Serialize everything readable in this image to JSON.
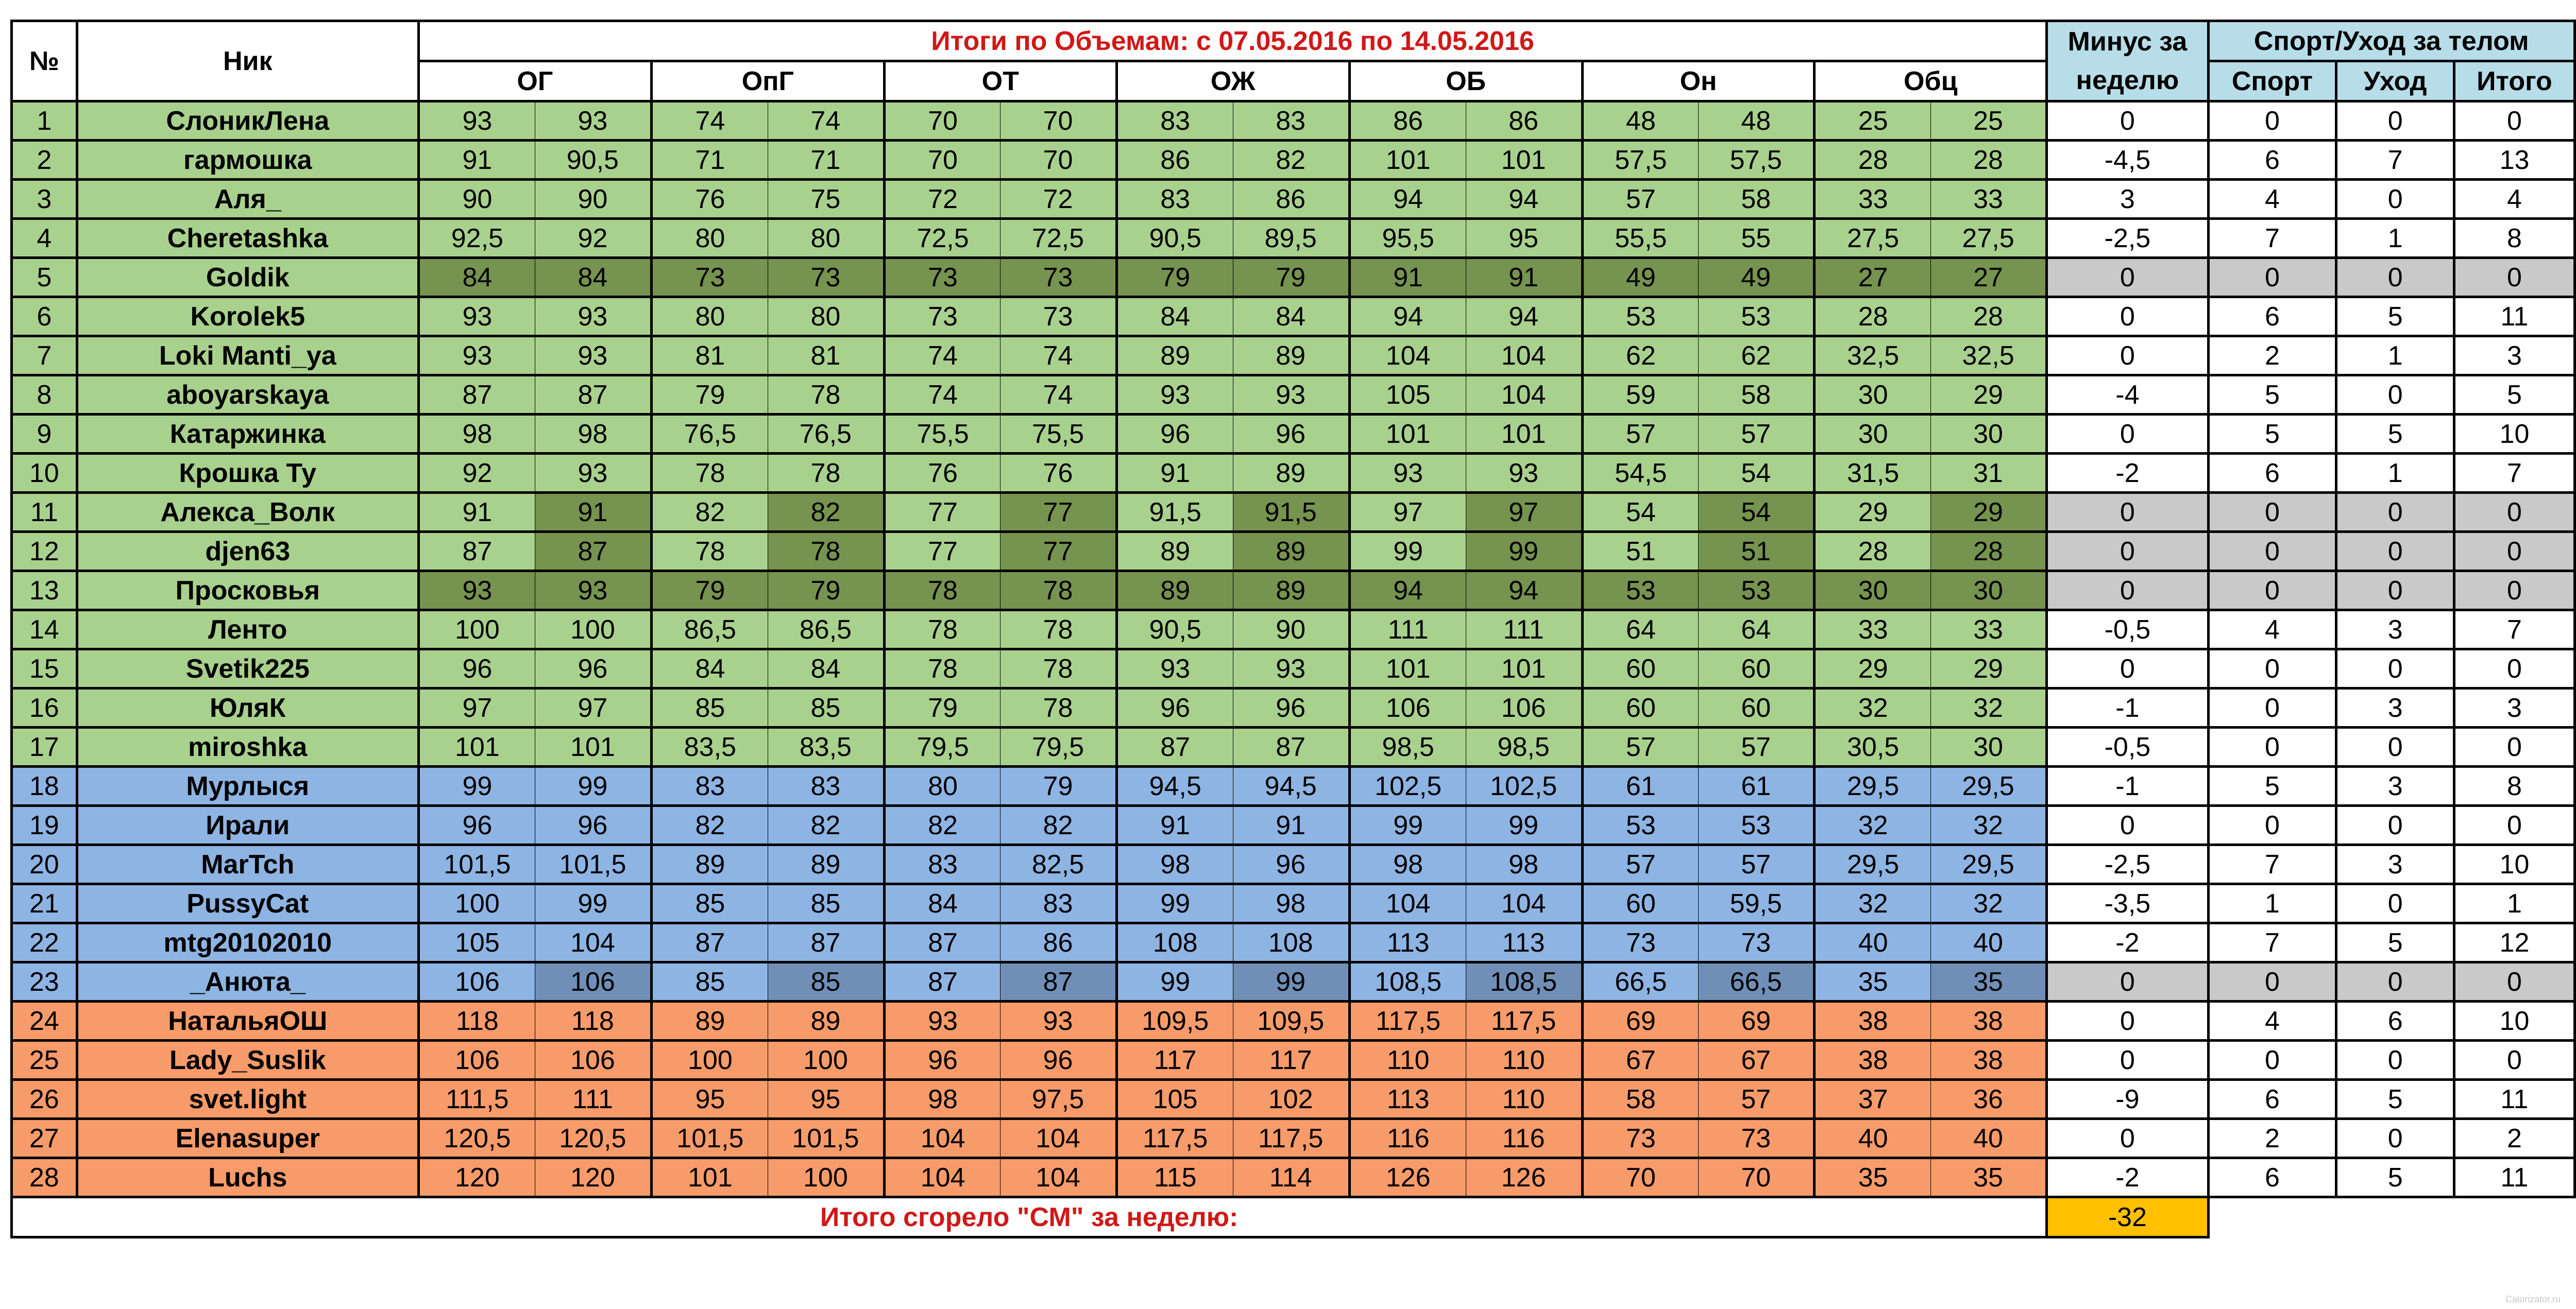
{
  "header": {
    "num": "№",
    "nick": "Ник",
    "title": "Итоги по Объемам: с  07.05.2016 по 14.05.2016",
    "groups": [
      "ОГ",
      "ОпГ",
      "ОТ",
      "ОЖ",
      "ОБ",
      "Он",
      "Обц"
    ],
    "minus_top": "Минус за",
    "minus_bottom": "неделю",
    "sport_group": "Спорт/Уход за телом",
    "sport": "Спорт",
    "care": "Уход",
    "total": "Итого"
  },
  "rows": [
    {
      "n": "1",
      "nick": "СлоникЛена",
      "v": [
        "93",
        "93",
        "74",
        "74",
        "70",
        "70",
        "83",
        "83",
        "86",
        "86",
        "48",
        "48",
        "25",
        "25"
      ],
      "minus": "0",
      "sport": "0",
      "care": "0",
      "total": "0",
      "color": "green"
    },
    {
      "n": "2",
      "nick": "гармошка",
      "v": [
        "91",
        "90,5",
        "71",
        "71",
        "70",
        "70",
        "86",
        "82",
        "101",
        "101",
        "57,5",
        "57,5",
        "28",
        "28"
      ],
      "minus": "-4,5",
      "sport": "6",
      "care": "7",
      "total": "13",
      "color": "green"
    },
    {
      "n": "3",
      "nick": "Аля_",
      "v": [
        "90",
        "90",
        "76",
        "75",
        "72",
        "72",
        "83",
        "86",
        "94",
        "94",
        "57",
        "58",
        "33",
        "33"
      ],
      "minus": "3",
      "sport": "4",
      "care": "0",
      "total": "4",
      "color": "green"
    },
    {
      "n": "4",
      "nick": "Cheretashka",
      "v": [
        "92,5",
        "92",
        "80",
        "80",
        "72,5",
        "72,5",
        "90,5",
        "89,5",
        "95,5",
        "95",
        "55,5",
        "55",
        "27,5",
        "27,5"
      ],
      "minus": "-2,5",
      "sport": "7",
      "care": "1",
      "total": "8",
      "color": "green"
    },
    {
      "n": "5",
      "nick": "Goldik",
      "v": [
        "84",
        "84",
        "73",
        "73",
        "73",
        "73",
        "79",
        "79",
        "91",
        "91",
        "49",
        "49",
        "27",
        "27"
      ],
      "minus": "0",
      "sport": "0",
      "care": "0",
      "total": "0",
      "color": "green",
      "shade": "full"
    },
    {
      "n": "6",
      "nick": "Korolek5",
      "v": [
        "93",
        "93",
        "80",
        "80",
        "73",
        "73",
        "84",
        "84",
        "94",
        "94",
        "53",
        "53",
        "28",
        "28"
      ],
      "minus": "0",
      "sport": "6",
      "care": "5",
      "total": "11",
      "color": "green"
    },
    {
      "n": "7",
      "nick": "Loki Manti_ya",
      "v": [
        "93",
        "93",
        "81",
        "81",
        "74",
        "74",
        "89",
        "89",
        "104",
        "104",
        "62",
        "62",
        "32,5",
        "32,5"
      ],
      "minus": "0",
      "sport": "2",
      "care": "1",
      "total": "3",
      "color": "green"
    },
    {
      "n": "8",
      "nick": "aboyarskaya",
      "v": [
        "87",
        "87",
        "79",
        "78",
        "74",
        "74",
        "93",
        "93",
        "105",
        "104",
        "59",
        "58",
        "30",
        "29"
      ],
      "minus": "-4",
      "sport": "5",
      "care": "0",
      "total": "5",
      "color": "green"
    },
    {
      "n": "9",
      "nick": "Катаржинка",
      "v": [
        "98",
        "98",
        "76,5",
        "76,5",
        "75,5",
        "75,5",
        "96",
        "96",
        "101",
        "101",
        "57",
        "57",
        "30",
        "30"
      ],
      "minus": "0",
      "sport": "5",
      "care": "5",
      "total": "10",
      "color": "green"
    },
    {
      "n": "10",
      "nick": "Крошка Ту",
      "v": [
        "92",
        "93",
        "78",
        "78",
        "76",
        "76",
        "91",
        "89",
        "93",
        "93",
        "54,5",
        "54",
        "31,5",
        "31"
      ],
      "minus": "-2",
      "sport": "6",
      "care": "1",
      "total": "7",
      "color": "green"
    },
    {
      "n": "11",
      "nick": "Алекса_Волк",
      "v": [
        "91",
        "91",
        "82",
        "82",
        "77",
        "77",
        "91,5",
        "91,5",
        "97",
        "97",
        "54",
        "54",
        "29",
        "29"
      ],
      "minus": "0",
      "sport": "0",
      "care": "0",
      "total": "0",
      "color": "green",
      "shade": "half"
    },
    {
      "n": "12",
      "nick": "djen63",
      "v": [
        "87",
        "87",
        "78",
        "78",
        "77",
        "77",
        "89",
        "89",
        "99",
        "99",
        "51",
        "51",
        "28",
        "28"
      ],
      "minus": "0",
      "sport": "0",
      "care": "0",
      "total": "0",
      "color": "green",
      "shade": "half"
    },
    {
      "n": "13",
      "nick": "Просковья",
      "v": [
        "93",
        "93",
        "79",
        "79",
        "78",
        "78",
        "89",
        "89",
        "94",
        "94",
        "53",
        "53",
        "30",
        "30"
      ],
      "minus": "0",
      "sport": "0",
      "care": "0",
      "total": "0",
      "color": "green",
      "shade": "full"
    },
    {
      "n": "14",
      "nick": "Ленто",
      "v": [
        "100",
        "100",
        "86,5",
        "86,5",
        "78",
        "78",
        "90,5",
        "90",
        "111",
        "111",
        "64",
        "64",
        "33",
        "33"
      ],
      "minus": "-0,5",
      "sport": "4",
      "care": "3",
      "total": "7",
      "color": "green"
    },
    {
      "n": "15",
      "nick": "Svetik225",
      "v": [
        "96",
        "96",
        "84",
        "84",
        "78",
        "78",
        "93",
        "93",
        "101",
        "101",
        "60",
        "60",
        "29",
        "29"
      ],
      "minus": "0",
      "sport": "0",
      "care": "0",
      "total": "0",
      "color": "green"
    },
    {
      "n": "16",
      "nick": "ЮляК",
      "v": [
        "97",
        "97",
        "85",
        "85",
        "79",
        "78",
        "96",
        "96",
        "106",
        "106",
        "60",
        "60",
        "32",
        "32"
      ],
      "minus": "-1",
      "sport": "0",
      "care": "3",
      "total": "3",
      "color": "green"
    },
    {
      "n": "17",
      "nick": "miroshka",
      "v": [
        "101",
        "101",
        "83,5",
        "83,5",
        "79,5",
        "79,5",
        "87",
        "87",
        "98,5",
        "98,5",
        "57",
        "57",
        "30,5",
        "30"
      ],
      "minus": "-0,5",
      "sport": "0",
      "care": "0",
      "total": "0",
      "color": "green"
    },
    {
      "n": "18",
      "nick": "Мурлыся",
      "v": [
        "99",
        "99",
        "83",
        "83",
        "80",
        "79",
        "94,5",
        "94,5",
        "102,5",
        "102,5",
        "61",
        "61",
        "29,5",
        "29,5"
      ],
      "minus": "-1",
      "sport": "5",
      "care": "3",
      "total": "8",
      "color": "blue"
    },
    {
      "n": "19",
      "nick": "Ирали",
      "v": [
        "96",
        "96",
        "82",
        "82",
        "82",
        "82",
        "91",
        "91",
        "99",
        "99",
        "53",
        "53",
        "32",
        "32"
      ],
      "minus": "0",
      "sport": "0",
      "care": "0",
      "total": "0",
      "color": "blue"
    },
    {
      "n": "20",
      "nick": "MarTch",
      "v": [
        "101,5",
        "101,5",
        "89",
        "89",
        "83",
        "82,5",
        "98",
        "96",
        "98",
        "98",
        "57",
        "57",
        "29,5",
        "29,5"
      ],
      "minus": "-2,5",
      "sport": "7",
      "care": "3",
      "total": "10",
      "color": "blue"
    },
    {
      "n": "21",
      "nick": "PussyCat",
      "v": [
        "100",
        "99",
        "85",
        "85",
        "84",
        "83",
        "99",
        "98",
        "104",
        "104",
        "60",
        "59,5",
        "32",
        "32"
      ],
      "minus": "-3,5",
      "sport": "1",
      "care": "0",
      "total": "1",
      "color": "blue"
    },
    {
      "n": "22",
      "nick": "mtg20102010",
      "v": [
        "105",
        "104",
        "87",
        "87",
        "87",
        "86",
        "108",
        "108",
        "113",
        "113",
        "73",
        "73",
        "40",
        "40"
      ],
      "minus": "-2",
      "sport": "7",
      "care": "5",
      "total": "12",
      "color": "blue"
    },
    {
      "n": "23",
      "nick": "_Анюта_",
      "v": [
        "106",
        "106",
        "85",
        "85",
        "87",
        "87",
        "99",
        "99",
        "108,5",
        "108,5",
        "66,5",
        "66,5",
        "35",
        "35"
      ],
      "minus": "0",
      "sport": "0",
      "care": "0",
      "total": "0",
      "color": "blue",
      "shade": "half"
    },
    {
      "n": "24",
      "nick": "НатальяОШ",
      "v": [
        "118",
        "118",
        "89",
        "89",
        "93",
        "93",
        "109,5",
        "109,5",
        "117,5",
        "117,5",
        "69",
        "69",
        "38",
        "38"
      ],
      "minus": "0",
      "sport": "4",
      "care": "6",
      "total": "10",
      "color": "orange"
    },
    {
      "n": "25",
      "nick": "Lady_Suslik",
      "v": [
        "106",
        "106",
        "100",
        "100",
        "96",
        "96",
        "117",
        "117",
        "110",
        "110",
        "67",
        "67",
        "38",
        "38"
      ],
      "minus": "0",
      "sport": "0",
      "care": "0",
      "total": "0",
      "color": "orange"
    },
    {
      "n": "26",
      "nick": "svet.light",
      "v": [
        "111,5",
        "111",
        "95",
        "95",
        "98",
        "97,5",
        "105",
        "102",
        "113",
        "110",
        "58",
        "57",
        "37",
        "36"
      ],
      "minus": "-9",
      "sport": "6",
      "care": "5",
      "total": "11",
      "color": "orange"
    },
    {
      "n": "27",
      "nick": "Elenasuper",
      "v": [
        "120,5",
        "120,5",
        "101,5",
        "101,5",
        "104",
        "104",
        "117,5",
        "117,5",
        "116",
        "116",
        "73",
        "73",
        "40",
        "40"
      ],
      "minus": "0",
      "sport": "2",
      "care": "0",
      "total": "2",
      "color": "orange"
    },
    {
      "n": "28",
      "nick": "Luchs",
      "v": [
        "120",
        "120",
        "101",
        "100",
        "104",
        "104",
        "115",
        "114",
        "126",
        "126",
        "70",
        "70",
        "35",
        "35"
      ],
      "minus": "-2",
      "sport": "6",
      "care": "5",
      "total": "11",
      "color": "orange"
    }
  ],
  "footer": {
    "label": "Итого сгорело \"СМ\" за неделю:",
    "value": "-32"
  },
  "watermark": "Calorizator.ru",
  "colors": {
    "green": "#a9d18e",
    "blue": "#8eb4e3",
    "orange": "#f79b6a",
    "grey": "#c9c9c9",
    "total_highlight": "#ffc000",
    "title_red": "#d01818",
    "header_teal": "#b7dde8"
  }
}
